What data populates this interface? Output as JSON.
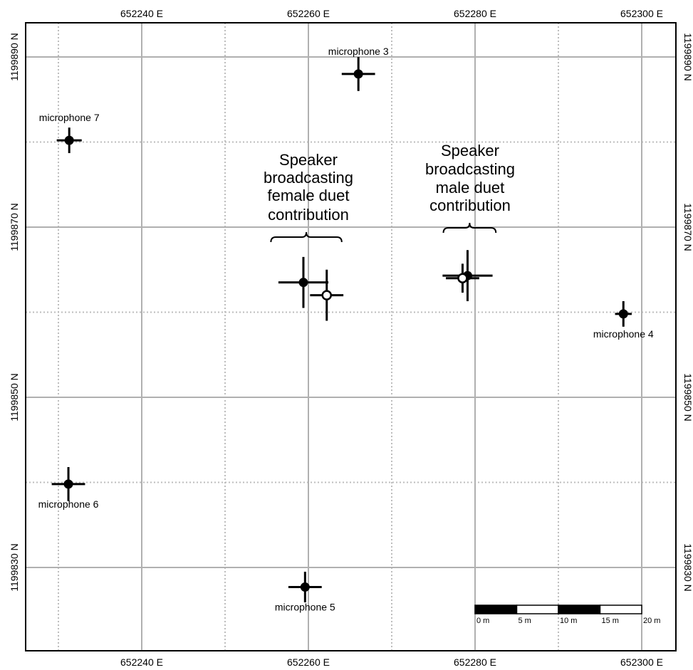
{
  "map": {
    "easting_range": [
      652226,
      652304
    ],
    "northing_range": [
      1199820,
      1199894
    ],
    "major_grid_easting": [
      652230,
      652250,
      652270,
      652290
    ],
    "major_grid_northing": [
      1199830,
      1199850,
      1199870,
      1199890
    ],
    "minor_grid_easting": [
      652240,
      652260,
      652280,
      652300
    ],
    "minor_grid_northing": [
      1199840,
      1199860,
      1199880
    ],
    "top_ticks": [
      {
        "value": 652240,
        "label": "652240 E"
      },
      {
        "value": 652260,
        "label": "652260 E"
      },
      {
        "value": 652280,
        "label": "652280 E"
      },
      {
        "value": 652300,
        "label": "652300 E"
      }
    ],
    "bottom_ticks": [
      {
        "value": 652240,
        "label": "652240 E"
      },
      {
        "value": 652260,
        "label": "652260 E"
      },
      {
        "value": 652280,
        "label": "652280 E"
      },
      {
        "value": 652300,
        "label": "652300 E"
      }
    ],
    "left_ticks": [
      {
        "value": 1199890,
        "label": "1199890 N"
      },
      {
        "value": 1199870,
        "label": "1199870 N"
      },
      {
        "value": 1199850,
        "label": "1199850 N"
      },
      {
        "value": 1199830,
        "label": "1199830 N"
      }
    ],
    "right_ticks": [
      {
        "value": 1199890,
        "label": "1199890 N"
      },
      {
        "value": 1199870,
        "label": "1199870 N"
      },
      {
        "value": 1199850,
        "label": "1199850 N"
      },
      {
        "value": 1199830,
        "label": "1199830 N"
      }
    ],
    "microphones": [
      {
        "name": "microphone 3",
        "e": 652266.0,
        "n": 1199888.0,
        "err_e": 2.0,
        "err_n": 2.0,
        "label_pos": "above"
      },
      {
        "name": "microphone 7",
        "e": 652231.3,
        "n": 1199880.2,
        "err_e": 1.5,
        "err_n": 1.5,
        "label_pos": "above"
      },
      {
        "name": "microphone 4",
        "e": 652297.8,
        "n": 1199859.8,
        "err_e": 1.0,
        "err_n": 1.5,
        "label_pos": "below"
      },
      {
        "name": "microphone 6",
        "e": 652231.2,
        "n": 1199839.8,
        "err_e": 2.0,
        "err_n": 2.0,
        "label_pos": "below"
      },
      {
        "name": "microphone 5",
        "e": 652259.6,
        "n": 1199827.7,
        "err_e": 2.0,
        "err_n": 1.8,
        "label_pos": "below"
      }
    ],
    "speaker_estimates": [
      {
        "e": 652259.4,
        "n": 1199863.5,
        "err_e": 3.0,
        "err_n": 3.0,
        "filled": true
      },
      {
        "e": 652262.2,
        "n": 1199862.0,
        "err_e": 2.0,
        "err_n": 3.0,
        "filled": false
      },
      {
        "e": 652279.1,
        "n": 1199864.3,
        "err_e": 3.0,
        "err_n": 3.0,
        "filled": true
      },
      {
        "e": 652278.5,
        "n": 1199864.0,
        "err_e": 2.0,
        "err_n": 1.7,
        "filled": false
      }
    ],
    "speaker_labels": [
      {
        "lines": [
          "Speaker",
          "broadcasting",
          "female duet",
          "contribution"
        ],
        "e": 652260.0,
        "brace_e": [
          652255.5,
          652264.0
        ]
      },
      {
        "lines": [
          "Speaker",
          "broadcasting",
          "male duet",
          "contribution"
        ],
        "e": 652279.4,
        "brace_e": [
          652276.2,
          652282.5
        ]
      }
    ],
    "scale_bar": {
      "labels": [
        "0 m",
        "5 m",
        "10 m",
        "15 m",
        "20 m"
      ],
      "segments_m": [
        0,
        5,
        10,
        15,
        20
      ]
    }
  }
}
